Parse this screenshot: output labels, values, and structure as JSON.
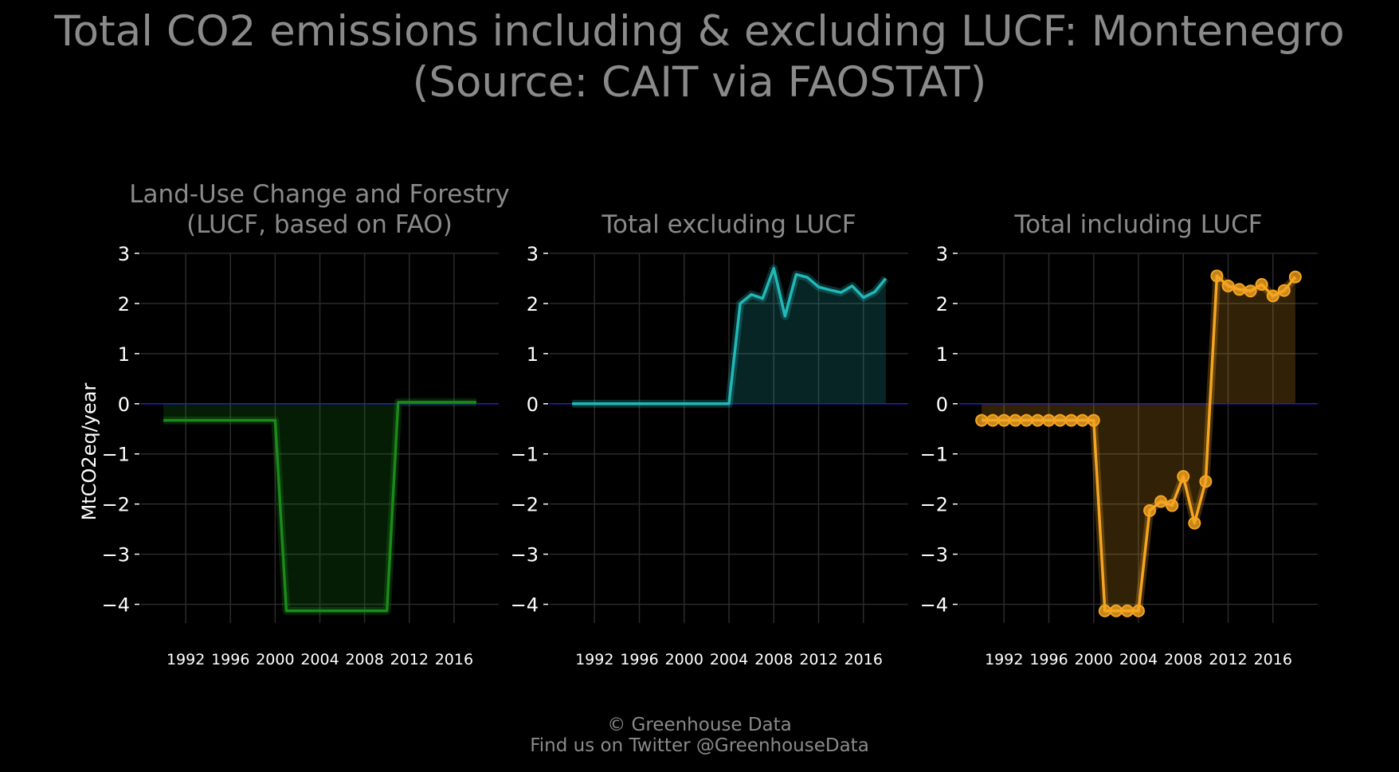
{
  "title": {
    "line1": "Total CO2 emissions including & excluding LUCF: Montenegro",
    "line2": "(Source: CAIT via FAOSTAT)"
  },
  "ylabel": "MtCO2eq/year",
  "footer": {
    "line1": "© Greenhouse Data",
    "line2": "Find us on Twitter @GreenhouseData"
  },
  "colors": {
    "background": "#000000",
    "grid": "#2b2b2b",
    "text": "#8a8a8a",
    "zero_line": "#2020d0",
    "lucf": "#1a8a1a",
    "excl": "#22b8b8",
    "incl": "#f5a520"
  },
  "chart_data": [
    {
      "type": "area",
      "title": "Land-Use Change and Forestry (LUCF, based on FAO)",
      "title_lines": [
        "Land-Use Change and Forestry",
        "(LUCF, based on FAO)"
      ],
      "xlabel": "",
      "ylabel": "MtCO2eq/year",
      "x": [
        1990,
        1991,
        1992,
        1993,
        1994,
        1995,
        1996,
        1997,
        1998,
        1999,
        2000,
        2001,
        2002,
        2003,
        2004,
        2005,
        2006,
        2007,
        2008,
        2009,
        2010,
        2011,
        2012,
        2013,
        2014,
        2015,
        2016,
        2017,
        2018
      ],
      "values": [
        -0.33,
        -0.33,
        -0.33,
        -0.33,
        -0.33,
        -0.33,
        -0.33,
        -0.33,
        -0.33,
        -0.33,
        -0.33,
        -4.13,
        -4.13,
        -4.13,
        -4.13,
        -4.13,
        -4.13,
        -4.13,
        -4.13,
        -4.13,
        -4.13,
        0.03,
        0.03,
        0.03,
        0.03,
        0.03,
        0.03,
        0.03,
        0.03
      ],
      "color": "#1a8a1a",
      "markers": false,
      "xlim": [
        1988,
        2020
      ],
      "ylim": [
        -4.5,
        3
      ],
      "xticks": [
        "1992",
        "1996",
        "2000",
        "2004",
        "2008",
        "2012",
        "2016"
      ],
      "yticks": [
        "3",
        "2",
        "1",
        "0",
        "−1",
        "−2",
        "−3",
        "−4"
      ],
      "grid": true
    },
    {
      "type": "area",
      "title": "Total excluding LUCF",
      "title_lines": [
        "Total excluding LUCF"
      ],
      "xlabel": "",
      "ylabel": "",
      "x": [
        1990,
        1991,
        1992,
        1993,
        1994,
        1995,
        1996,
        1997,
        1998,
        1999,
        2000,
        2001,
        2002,
        2003,
        2004,
        2005,
        2006,
        2007,
        2008,
        2009,
        2010,
        2011,
        2012,
        2013,
        2014,
        2015,
        2016,
        2017,
        2018
      ],
      "values": [
        0,
        0,
        0,
        0,
        0,
        0,
        0,
        0,
        0,
        0,
        0,
        0,
        0,
        0,
        0,
        2.0,
        2.18,
        2.1,
        2.7,
        1.75,
        2.58,
        2.52,
        2.33,
        2.27,
        2.22,
        2.35,
        2.12,
        2.23,
        2.5
      ],
      "color": "#22b8b8",
      "markers": false,
      "xlim": [
        1988,
        2020
      ],
      "ylim": [
        -4.5,
        3
      ],
      "xticks": [
        "1992",
        "1996",
        "2000",
        "2004",
        "2008",
        "2012",
        "2016"
      ],
      "yticks": [
        "3",
        "2",
        "1",
        "0",
        "−1",
        "−2",
        "−3",
        "−4"
      ],
      "grid": true
    },
    {
      "type": "area",
      "title": "Total including LUCF",
      "title_lines": [
        "Total including LUCF"
      ],
      "xlabel": "",
      "ylabel": "",
      "x": [
        1990,
        1991,
        1992,
        1993,
        1994,
        1995,
        1996,
        1997,
        1998,
        1999,
        2000,
        2001,
        2002,
        2003,
        2004,
        2005,
        2006,
        2007,
        2008,
        2009,
        2010,
        2011,
        2012,
        2013,
        2014,
        2015,
        2016,
        2017,
        2018
      ],
      "values": [
        -0.33,
        -0.33,
        -0.33,
        -0.33,
        -0.33,
        -0.33,
        -0.33,
        -0.33,
        -0.33,
        -0.33,
        -0.33,
        -4.13,
        -4.13,
        -4.13,
        -4.13,
        -2.13,
        -1.95,
        -2.03,
        -1.45,
        -2.38,
        -1.55,
        2.55,
        2.35,
        2.28,
        2.25,
        2.38,
        2.15,
        2.26,
        2.53
      ],
      "color": "#f5a520",
      "markers": true,
      "xlim": [
        1988,
        2020
      ],
      "ylim": [
        -4.5,
        3
      ],
      "xticks": [
        "1992",
        "1996",
        "2000",
        "2004",
        "2008",
        "2012",
        "2016"
      ],
      "yticks": [
        "3",
        "2",
        "1",
        "0",
        "−1",
        "−2",
        "−3",
        "−4"
      ],
      "grid": true
    }
  ]
}
